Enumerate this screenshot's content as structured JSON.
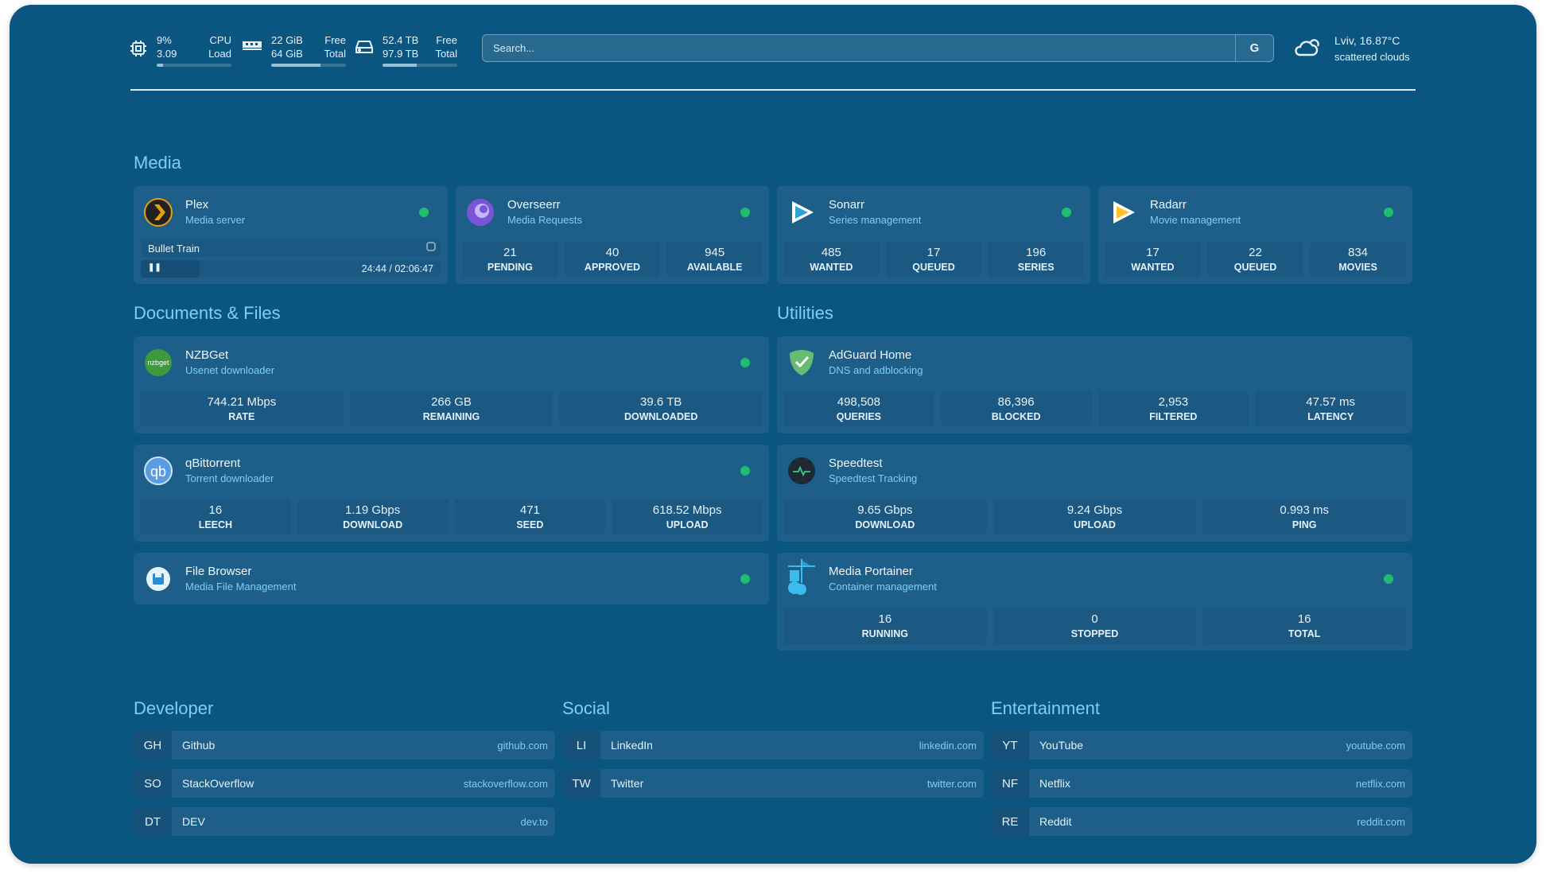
{
  "resources": {
    "cpu": {
      "icon": "cpu-icon",
      "v1": "9%",
      "l1": "CPU",
      "v2": "3.09",
      "l2": "Load",
      "percent": 9
    },
    "memory": {
      "icon": "memory-icon",
      "v1": "22 GiB",
      "l1": "Free",
      "v2": "64 GiB",
      "l2": "Total",
      "percent": 66
    },
    "disk": {
      "icon": "disk-icon",
      "v1": "52.4 TB",
      "l1": "Free",
      "v2": "97.9 TB",
      "l2": "Total",
      "percent": 46
    }
  },
  "search": {
    "placeholder": "Search...",
    "button": "G"
  },
  "weather": {
    "icon": "cloud-sun-icon",
    "location": "Lviv, 16.87°C",
    "condition": "scattered clouds"
  },
  "colors": {
    "background": "#0b5581",
    "card": "#1e5f89",
    "accent": "#7dcff6",
    "status": "#1fbd6e"
  },
  "sections": {
    "media": "Media",
    "docs": "Documents & Files",
    "utilities": "Utilities",
    "developer": "Developer",
    "social": "Social",
    "entertainment": "Entertainment"
  },
  "media": {
    "plex": {
      "title": "Plex",
      "subtitle": "Media server",
      "now_playing": "Bullet Train",
      "time": "24:44 / 02:06:47",
      "progress": 0.195
    },
    "overseerr": {
      "title": "Overseerr",
      "subtitle": "Media Requests",
      "stats": [
        {
          "v": "21",
          "l": "PENDING"
        },
        {
          "v": "40",
          "l": "APPROVED"
        },
        {
          "v": "945",
          "l": "AVAILABLE"
        }
      ]
    },
    "sonarr": {
      "title": "Sonarr",
      "subtitle": "Series management",
      "stats": [
        {
          "v": "485",
          "l": "WANTED"
        },
        {
          "v": "17",
          "l": "QUEUED"
        },
        {
          "v": "196",
          "l": "SERIES"
        }
      ]
    },
    "radarr": {
      "title": "Radarr",
      "subtitle": "Movie management",
      "stats": [
        {
          "v": "17",
          "l": "WANTED"
        },
        {
          "v": "22",
          "l": "QUEUED"
        },
        {
          "v": "834",
          "l": "MOVIES"
        }
      ]
    }
  },
  "docs": {
    "nzbget": {
      "title": "NZBGet",
      "subtitle": "Usenet downloader",
      "logo": "nzbget",
      "stats": [
        {
          "v": "744.21 Mbps",
          "l": "RATE"
        },
        {
          "v": "266 GB",
          "l": "REMAINING"
        },
        {
          "v": "39.6 TB",
          "l": "DOWNLOADED"
        }
      ]
    },
    "qbit": {
      "title": "qBittorrent",
      "subtitle": "Torrent downloader",
      "logo": "qb",
      "stats": [
        {
          "v": "16",
          "l": "LEECH"
        },
        {
          "v": "1.19 Gbps",
          "l": "DOWNLOAD"
        },
        {
          "v": "471",
          "l": "SEED"
        },
        {
          "v": "618.52 Mbps",
          "l": "UPLOAD"
        }
      ]
    },
    "filebrowser": {
      "title": "File Browser",
      "subtitle": "Media File Management"
    }
  },
  "utilities": {
    "adguard": {
      "title": "AdGuard Home",
      "subtitle": "DNS and adblocking",
      "stats": [
        {
          "v": "498,508",
          "l": "QUERIES"
        },
        {
          "v": "86,396",
          "l": "BLOCKED"
        },
        {
          "v": "2,953",
          "l": "FILTERED"
        },
        {
          "v": "47.57 ms",
          "l": "LATENCY"
        }
      ]
    },
    "speedtest": {
      "title": "Speedtest",
      "subtitle": "Speedtest Tracking",
      "stats": [
        {
          "v": "9.65 Gbps",
          "l": "DOWNLOAD"
        },
        {
          "v": "9.24 Gbps",
          "l": "UPLOAD"
        },
        {
          "v": "0.993 ms",
          "l": "PING"
        }
      ]
    },
    "portainer": {
      "title": "Media Portainer",
      "subtitle": "Container management",
      "stats": [
        {
          "v": "16",
          "l": "RUNNING"
        },
        {
          "v": "0",
          "l": "STOPPED"
        },
        {
          "v": "16",
          "l": "TOTAL"
        }
      ]
    }
  },
  "bookmarks": {
    "developer": [
      {
        "abbr": "GH",
        "name": "Github",
        "url": "github.com"
      },
      {
        "abbr": "SO",
        "name": "StackOverflow",
        "url": "stackoverflow.com"
      },
      {
        "abbr": "DT",
        "name": "DEV",
        "url": "dev.to"
      }
    ],
    "social": [
      {
        "abbr": "LI",
        "name": "LinkedIn",
        "url": "linkedin.com"
      },
      {
        "abbr": "TW",
        "name": "Twitter",
        "url": "twitter.com"
      }
    ],
    "entertainment": [
      {
        "abbr": "YT",
        "name": "YouTube",
        "url": "youtube.com"
      },
      {
        "abbr": "NF",
        "name": "Netflix",
        "url": "netflix.com"
      },
      {
        "abbr": "RE",
        "name": "Reddit",
        "url": "reddit.com"
      }
    ]
  }
}
